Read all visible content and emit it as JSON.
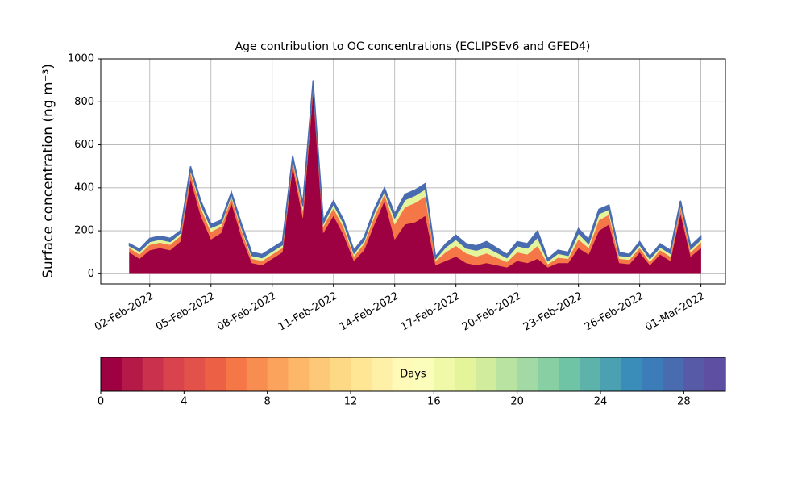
{
  "chart_data": {
    "type": "stacked_area",
    "title": "Age contribution to OC concentrations (ECLIPSEv6 and GFED4)",
    "y_label": "Surface concentration (ng m⁻³)",
    "x": [
      19024,
      19024.5,
      19025,
      19025.5,
      19026,
      19026.5,
      19027,
      19027.5,
      19028,
      19028.5,
      19029,
      19029.5,
      19030,
      19030.5,
      19031,
      19031.5,
      19032,
      19032.5,
      19033,
      19033.5,
      19034,
      19034.5,
      19035,
      19035.5,
      19036,
      19036.5,
      19037,
      19037.5,
      19038,
      19038.5,
      19039,
      19039.5,
      19040,
      19040.5,
      19041,
      19041.5,
      19042,
      19042.5,
      19043,
      19043.5,
      19044,
      19044.5,
      19045,
      19045.5,
      19046,
      19046.5,
      19047,
      19047.5,
      19048,
      19048.5,
      19049,
      19049.5,
      19050,
      19050.5,
      19051,
      19051.5,
      19052
    ],
    "series": [
      {
        "color": "#9e0142",
        "values": [
          100,
          70,
          110,
          120,
          110,
          150,
          440,
          270,
          160,
          190,
          330,
          170,
          50,
          40,
          70,
          100,
          500,
          260,
          850,
          190,
          270,
          180,
          60,
          110,
          230,
          340,
          160,
          230,
          240,
          270,
          40,
          60,
          80,
          50,
          40,
          50,
          40,
          30,
          60,
          50,
          70,
          30,
          50,
          50,
          120,
          90,
          200,
          230,
          50,
          45,
          100,
          40,
          90,
          60,
          280,
          80,
          120
        ]
      },
      {
        "color": "#f57748",
        "values": [
          20,
          20,
          25,
          25,
          25,
          25,
          30,
          35,
          35,
          30,
          25,
          30,
          20,
          20,
          20,
          20,
          25,
          35,
          25,
          30,
          35,
          35,
          20,
          30,
          35,
          30,
          70,
          80,
          90,
          90,
          20,
          40,
          50,
          45,
          40,
          45,
          35,
          25,
          40,
          40,
          60,
          15,
          25,
          20,
          40,
          30,
          50,
          45,
          20,
          20,
          20,
          15,
          20,
          20,
          30,
          20,
          25
        ]
      },
      {
        "color": "#e4f49a",
        "values": [
          10,
          15,
          15,
          15,
          15,
          15,
          15,
          20,
          20,
          15,
          15,
          15,
          15,
          15,
          15,
          15,
          15,
          20,
          15,
          15,
          20,
          20,
          15,
          15,
          20,
          15,
          30,
          35,
          35,
          35,
          10,
          25,
          30,
          25,
          30,
          30,
          25,
          20,
          30,
          30,
          40,
          15,
          20,
          15,
          30,
          20,
          30,
          25,
          15,
          15,
          15,
          15,
          15,
          15,
          15,
          15,
          15
        ]
      },
      {
        "color": "#496bb0",
        "values": [
          10,
          10,
          15,
          15,
          15,
          10,
          15,
          15,
          15,
          15,
          10,
          15,
          15,
          15,
          15,
          15,
          10,
          15,
          10,
          15,
          15,
          15,
          15,
          15,
          15,
          15,
          20,
          25,
          25,
          25,
          10,
          15,
          20,
          20,
          20,
          25,
          20,
          15,
          20,
          20,
          30,
          10,
          15,
          15,
          20,
          20,
          20,
          20,
          15,
          10,
          15,
          10,
          15,
          15,
          15,
          15,
          15
        ]
      }
    ],
    "xlim": [
      19022.6,
      19053.2
    ],
    "xticks": [
      {
        "value": 19025,
        "label": "02-Feb-2022"
      },
      {
        "value": 19028,
        "label": "05-Feb-2022"
      },
      {
        "value": 19031,
        "label": "08-Feb-2022"
      },
      {
        "value": 19034,
        "label": "11-Feb-2022"
      },
      {
        "value": 19037,
        "label": "14-Feb-2022"
      },
      {
        "value": 19040,
        "label": "17-Feb-2022"
      },
      {
        "value": 19043,
        "label": "20-Feb-2022"
      },
      {
        "value": 19046,
        "label": "23-Feb-2022"
      },
      {
        "value": 19049,
        "label": "26-Feb-2022"
      },
      {
        "value": 19052,
        "label": "01-Mar-2022"
      }
    ],
    "ylim": [
      -47.5,
      1000
    ],
    "yticks": [
      0,
      200,
      400,
      600,
      800,
      1000
    ],
    "grid": true,
    "colorbar": {
      "label": "Days",
      "lim": [
        0,
        30
      ],
      "ticks": [
        0,
        4,
        8,
        12,
        16,
        20,
        24,
        28
      ],
      "colors": [
        "#9e0142",
        "#b41947",
        "#c9314c",
        "#d8434e",
        "#e2524a",
        "#ec6146",
        "#f57748",
        "#f88d52",
        "#fba35c",
        "#fdb768",
        "#fdc877",
        "#fed985",
        "#fee695",
        "#fff0a8",
        "#fffab8",
        "#fbfdba",
        "#f0f9a8",
        "#e4f49a",
        "#d0ec9c",
        "#b9e3a0",
        "#a2d9a4",
        "#88cfa4",
        "#6fc4a5",
        "#5db3aa",
        "#4ba0b1",
        "#3a8db8",
        "#3b7cb9",
        "#496bb0",
        "#575ba7",
        "#5e4fa2"
      ]
    }
  }
}
